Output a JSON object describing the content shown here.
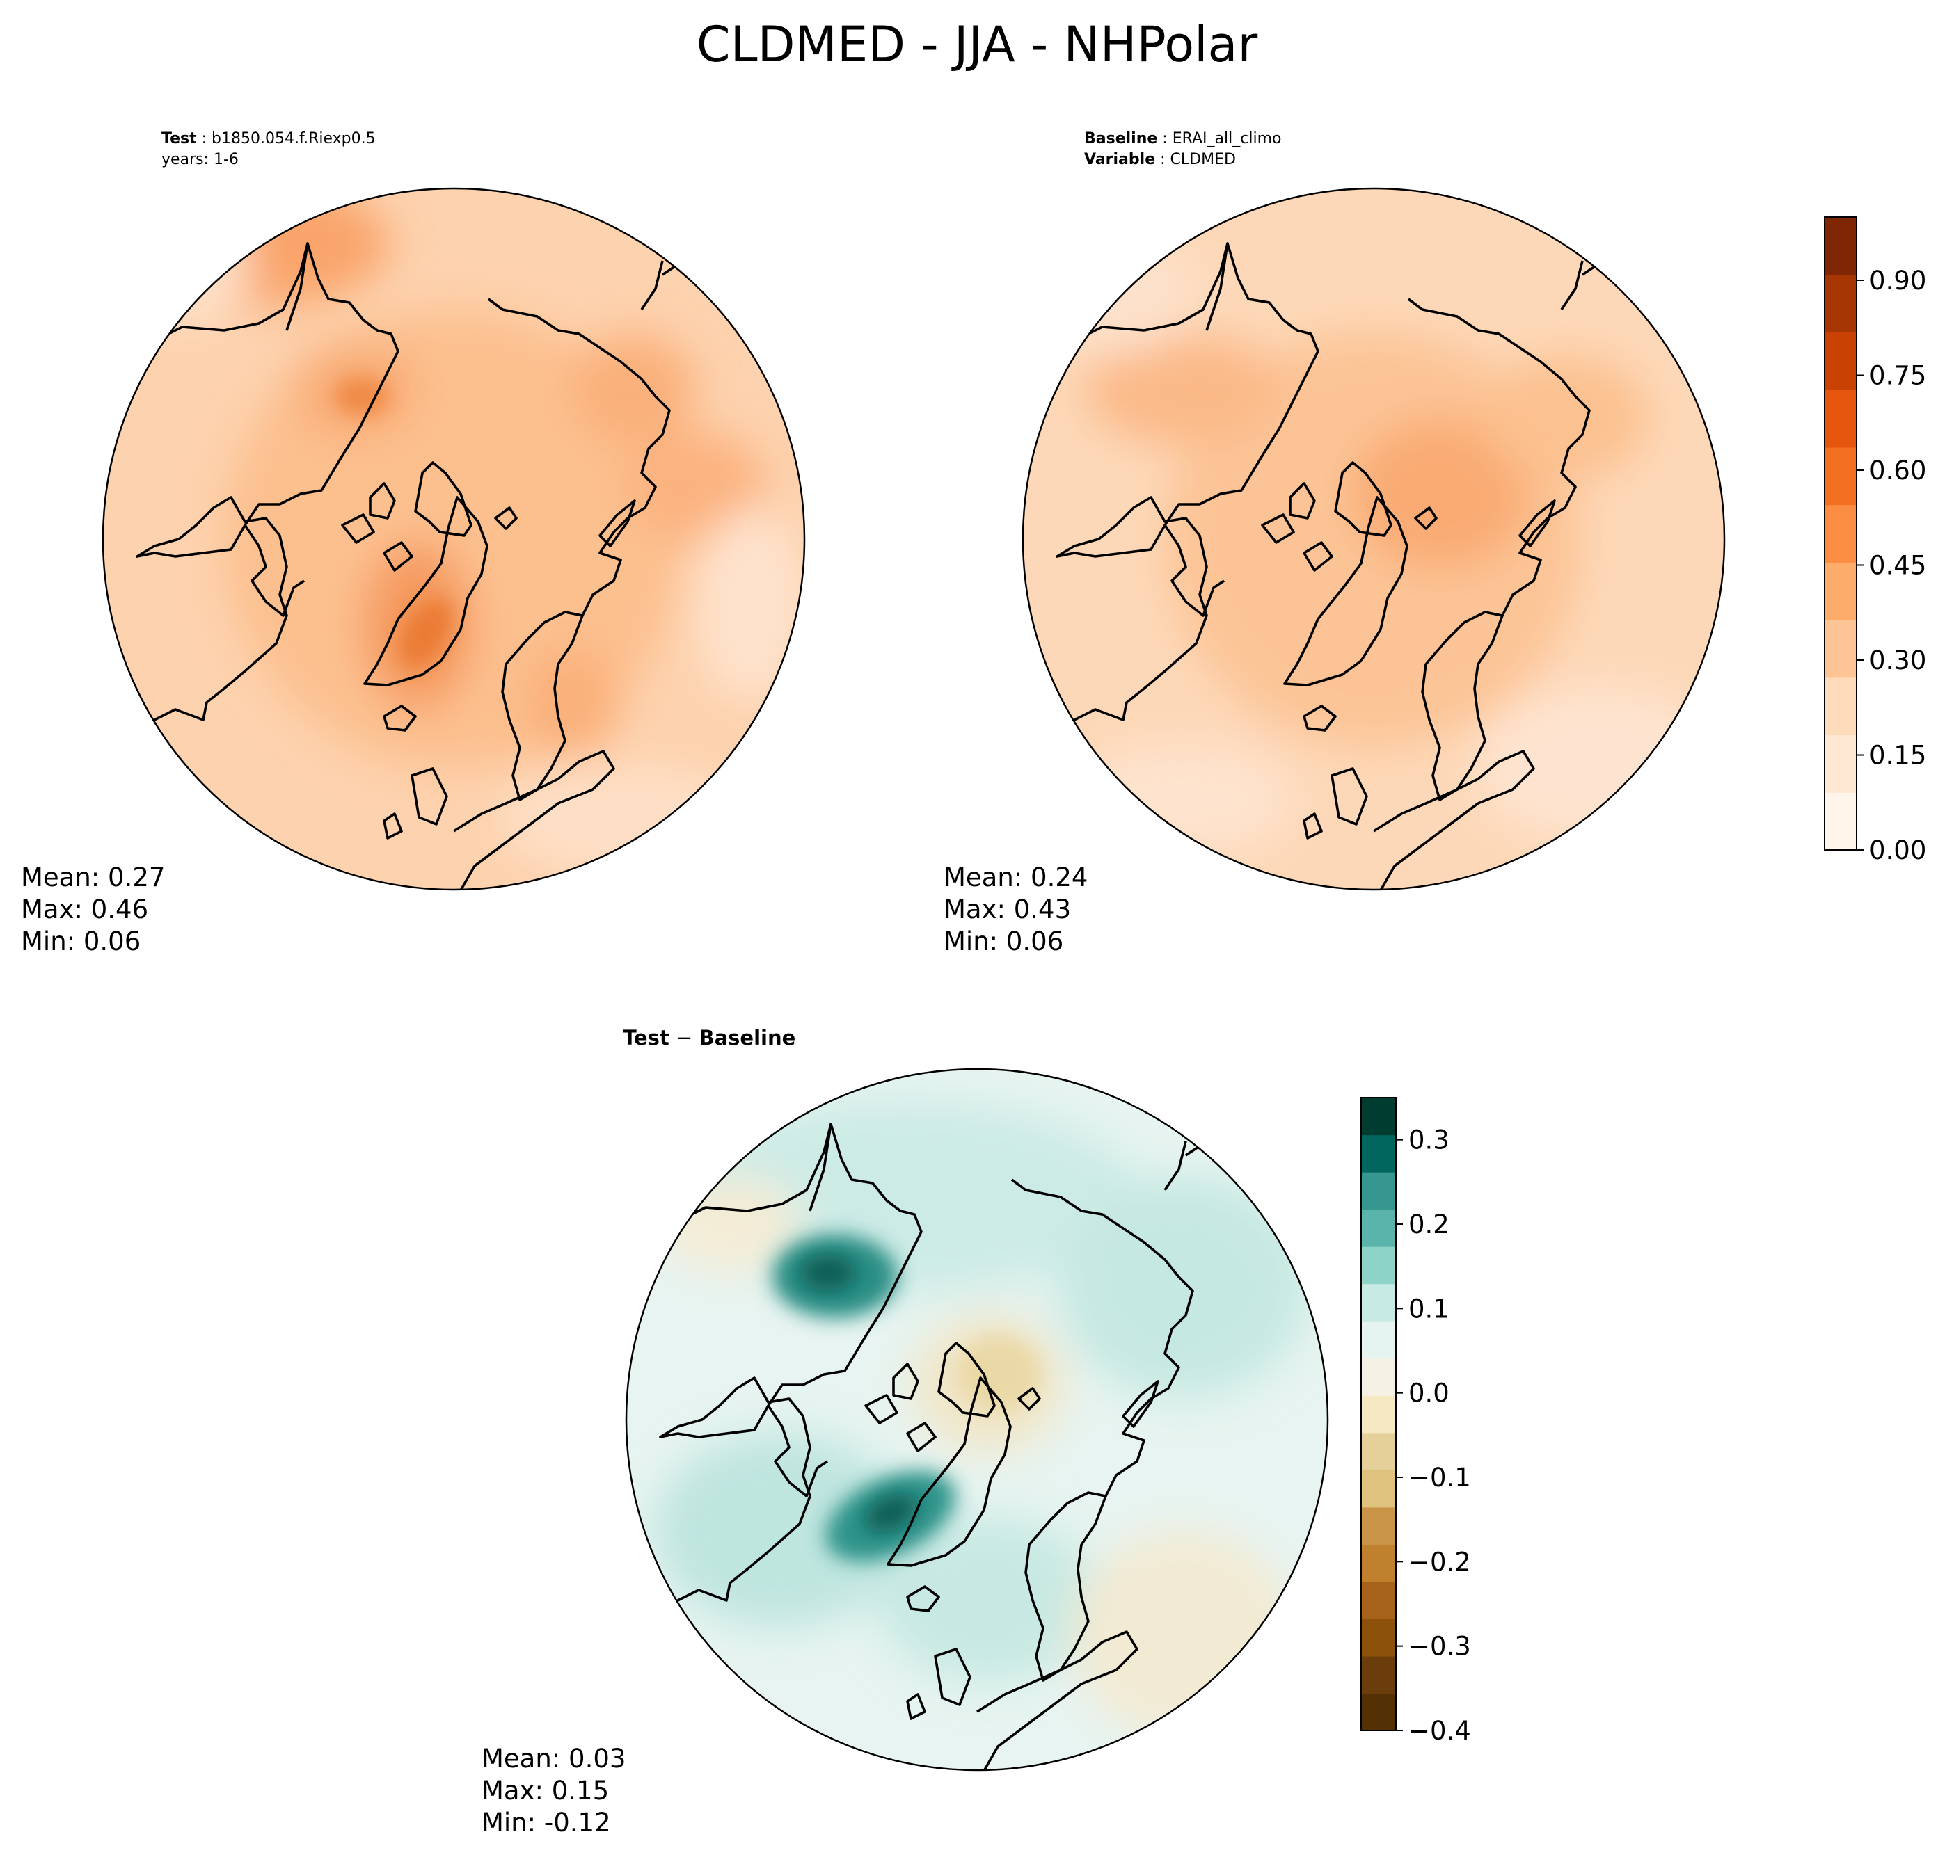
{
  "title": "CLDMED - JJA - NHPolar",
  "test": {
    "label": "Test",
    "case": "b1850.054.f.Riexp0.5",
    "years": "years: 1-6",
    "stats": {
      "mean": "Mean:  0.27",
      "max": "Max:  0.46",
      "min": "Min:  0.06"
    }
  },
  "baseline": {
    "label": "Baseline",
    "case": "ERAI_all_climo",
    "variable_label": "Variable",
    "variable": "CLDMED",
    "stats": {
      "mean": "Mean:  0.24",
      "max": "Max:  0.43",
      "min": "Min:  0.06"
    }
  },
  "diff": {
    "title_prefix": "Test",
    "title_sep": " − ",
    "title_suffix": "Baseline",
    "stats": {
      "mean": "Mean:  0.03",
      "max": "Max:  0.15",
      "min": "Min: -0.12"
    }
  },
  "colorbar_main": {
    "colormap": "Oranges",
    "range": [
      0.0,
      1.0
    ],
    "ticks": [
      "0.00",
      "0.15",
      "0.30",
      "0.45",
      "0.60",
      "0.75",
      "0.90"
    ],
    "tick_values": [
      0.0,
      0.15,
      0.3,
      0.45,
      0.6,
      0.75,
      0.9
    ],
    "colors": [
      "#fff5eb",
      "#fee8d3",
      "#fddbbb",
      "#fdc595",
      "#fdac6c",
      "#fb8d43",
      "#f36f21",
      "#e6550d",
      "#c94103",
      "#a63603",
      "#7f2704"
    ]
  },
  "colorbar_diff": {
    "colormap": "BrBG",
    "range": [
      -0.4,
      0.35
    ],
    "ticks": [
      "0.3",
      "0.2",
      "0.1",
      "0.0",
      "−0.1",
      "−0.2",
      "−0.3",
      "−0.4"
    ],
    "tick_values": [
      0.3,
      0.2,
      0.1,
      0.0,
      -0.1,
      -0.2,
      -0.3,
      -0.4
    ],
    "colors": [
      "#003c30",
      "#01665e",
      "#35978f",
      "#5ab4ac",
      "#8dd3c7",
      "#c7eae5",
      "#e6f4f1",
      "#f5f1e4",
      "#f6e8c3",
      "#e6d09a",
      "#dfc27d",
      "#c99447",
      "#bf812d",
      "#a6611a",
      "#8c510a",
      "#6b3d0a",
      "#543005"
    ]
  },
  "chart_data": {
    "type": "polar-map",
    "projection": "North Polar Stereographic",
    "variable": "CLDMED",
    "season": "JJA",
    "panels": [
      {
        "name": "Test",
        "mean": 0.27,
        "max": 0.46,
        "min": 0.06
      },
      {
        "name": "Baseline",
        "mean": 0.24,
        "max": 0.43,
        "min": 0.06
      },
      {
        "name": "Test − Baseline",
        "mean": 0.03,
        "max": 0.15,
        "min": -0.12
      }
    ]
  }
}
